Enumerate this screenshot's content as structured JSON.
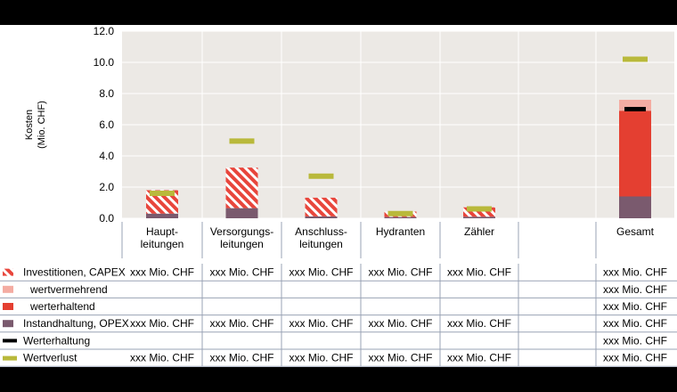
{
  "chart_data": {
    "type": "bar",
    "ylabel": "Kosten",
    "ylabel_unit": "(Mio. CHF)",
    "ylim": [
      0,
      12
    ],
    "yticks": [
      "0.0",
      "2.0",
      "4.0",
      "6.0",
      "8.0",
      "10.0",
      "12.0"
    ],
    "categories": [
      {
        "line1": "Haupt-",
        "line2": "leitungen"
      },
      {
        "line1": "Versorgungs-",
        "line2": "leitungen"
      },
      {
        "line1": "Anschluss-",
        "line2": "leitungen"
      },
      {
        "line1": "Hydranten",
        "line2": ""
      },
      {
        "line1": "Zähler",
        "line2": ""
      },
      {
        "line1": "",
        "line2": ""
      },
      {
        "line1": "Gesamt",
        "line2": ""
      }
    ],
    "series": [
      {
        "name": "Instandhaltung, OPEX",
        "values": [
          0.3,
          0.65,
          0.12,
          0.08,
          0.1,
          null,
          1.4
        ]
      },
      {
        "name": "Investitionen, CAPEX",
        "values": [
          1.5,
          2.6,
          1.2,
          0.35,
          0.6,
          null,
          null
        ]
      },
      {
        "name": "werterhaltend",
        "values": [
          null,
          null,
          null,
          null,
          null,
          null,
          5.5
        ]
      },
      {
        "name": "wertvermehrend",
        "values": [
          null,
          null,
          null,
          null,
          null,
          null,
          0.7
        ]
      },
      {
        "name": "Werterhaltung",
        "values": [
          null,
          null,
          null,
          null,
          null,
          null,
          7.0
        ]
      },
      {
        "name": "Wertverlust",
        "values": [
          1.6,
          4.95,
          2.7,
          0.3,
          0.6,
          null,
          10.2
        ]
      }
    ]
  },
  "table": {
    "rows": [
      {
        "label": "Investitionen, CAPEX",
        "swatch": "capex",
        "cells": [
          "xxx Mio. CHF",
          "xxx Mio. CHF",
          "xxx Mio. CHF",
          "xxx Mio. CHF",
          "xxx Mio. CHF",
          "",
          "xxx Mio. CHF"
        ]
      },
      {
        "label": "wertvermehrend",
        "swatch": "wertvermehrend",
        "cells": [
          "",
          "",
          "",
          "",
          "",
          "",
          "xxx Mio. CHF"
        ]
      },
      {
        "label": "werterhaltend",
        "swatch": "werterhaltend",
        "cells": [
          "",
          "",
          "",
          "",
          "",
          "",
          "xxx Mio. CHF"
        ]
      },
      {
        "label": "Instandhaltung, OPEX",
        "swatch": "opex",
        "cells": [
          "xxx Mio. CHF",
          "xxx Mio. CHF",
          "xxx Mio. CHF",
          "xxx Mio. CHF",
          "xxx Mio. CHF",
          "",
          "xxx Mio. CHF"
        ]
      },
      {
        "label": "Werterhaltung",
        "swatch": "werterhaltung",
        "cells": [
          "",
          "",
          "",
          "",
          "",
          "",
          "xxx Mio. CHF"
        ]
      },
      {
        "label": "Wertverlust",
        "swatch": "wertverlust",
        "cells": [
          "xxx Mio. CHF",
          "xxx Mio. CHF",
          "xxx Mio. CHF",
          "xxx Mio. CHF",
          "xxx Mio. CHF",
          "",
          "xxx Mio. CHF"
        ]
      }
    ]
  },
  "colors": {
    "plot_bg": "#ece9e5",
    "grid": "#ffffff",
    "opex": "#7a5a6e",
    "capex": "#e8463c",
    "werterhaltend": "#e43f31",
    "wertvermehrend": "#f4aca2",
    "werterhaltung": "#000000",
    "wertverlust": "#b9b93b",
    "table_line": "#9aa3b5"
  }
}
